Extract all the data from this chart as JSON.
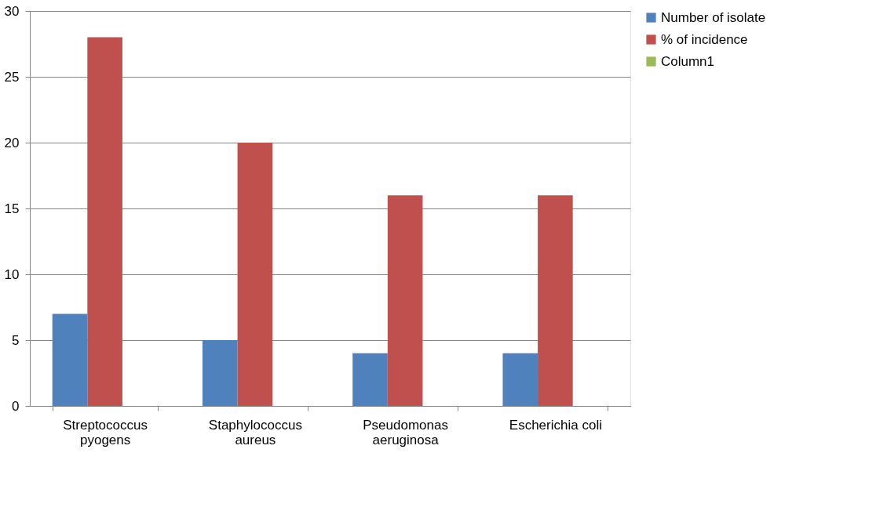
{
  "chart_data": {
    "type": "bar",
    "categories": [
      "Streptococcus pyogens",
      "Staphylococcus aureus",
      "Pseudomonas aeruginosa",
      "Escherichia coli"
    ],
    "series": [
      {
        "name": "Number of isolate",
        "color": "#4f81bd",
        "values": [
          7,
          5,
          4,
          4
        ]
      },
      {
        "name": "% of incidence",
        "color": "#c0504d",
        "values": [
          28,
          20,
          16,
          16
        ]
      },
      {
        "name": "Column1",
        "color": "#9bbb59",
        "values": [
          null,
          null,
          null,
          null
        ]
      }
    ],
    "ylim": [
      0,
      30
    ],
    "yticks": [
      0,
      5,
      10,
      15,
      20,
      25,
      30
    ],
    "grid": "y",
    "legend": "right"
  }
}
